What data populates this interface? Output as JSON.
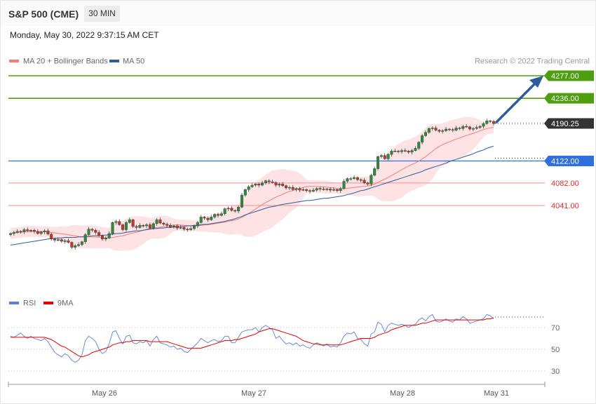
{
  "header": {
    "title": "S&P 500 (CME)",
    "timeframe": "30 MIN",
    "datetime": "Monday, May 30, 2022 9:37:15 AM CET"
  },
  "legend": {
    "ma20": {
      "label": "MA 20 + Bollinger Bands",
      "color": "#f47c7c"
    },
    "ma50": {
      "label": "MA 50",
      "color": "#2e5b9a"
    },
    "credit": "Research © 2022 Trading Central"
  },
  "rsi_legend": {
    "rsi": {
      "label": "RSI",
      "color": "#5b7fd6"
    },
    "ma9": {
      "label": "9MA",
      "color": "#e00000"
    }
  },
  "colors": {
    "resistance": "#4f9e0f",
    "pivot": "#2f6fe0",
    "support": "#f5a0a5",
    "support_text": "#d9302b",
    "last": "#333333",
    "bull": "#2e8b3e",
    "bear": "#c0392b",
    "band": "#fde3e4",
    "arrow": "#2e5b9a"
  },
  "chart_data": [
    {
      "type": "candlestick",
      "x_labels": [
        "May 26",
        "May 27",
        "May 28",
        "May 31"
      ],
      "y_range": [
        3950,
        4285
      ],
      "levels": [
        {
          "value": 4277.0,
          "label": "4277.00",
          "kind": "resistance"
        },
        {
          "value": 4236.0,
          "label": "4236.00",
          "kind": "resistance"
        },
        {
          "value": 4190.25,
          "label": "4190.25",
          "kind": "last"
        },
        {
          "value": 4122.0,
          "label": "4122.00",
          "kind": "pivot"
        },
        {
          "value": 4082.0,
          "label": "4082.00",
          "kind": "support"
        },
        {
          "value": 4041.0,
          "label": "4041.00",
          "kind": "support"
        }
      ],
      "close": [
        3990,
        3992,
        3994,
        3993,
        3997,
        3995,
        3996,
        3994,
        3990,
        3993,
        3995,
        3989,
        3980,
        3978,
        3979,
        3976,
        3977,
        3974,
        3965,
        3968,
        3970,
        3975,
        3988,
        3998,
        3996,
        3992,
        3986,
        3980,
        3982,
        3990,
        4010,
        4012,
        4006,
        3997,
        4010,
        4015,
        4003,
        4001,
        4005,
        4004,
        4006,
        4000,
        4008,
        4015,
        4009,
        4007,
        4005,
        4002,
        4004,
        4000,
        4001,
        3998,
        3997,
        3999,
        4004,
        4010,
        4020,
        4018,
        4015,
        4020,
        4025,
        4023,
        4026,
        4035,
        4036,
        4032,
        4031,
        4038,
        4060,
        4070,
        4075,
        4078,
        4080,
        4078,
        4082,
        4086,
        4084,
        4083,
        4078,
        4080,
        4077,
        4073,
        4074,
        4070,
        4072,
        4069,
        4070,
        4068,
        4067,
        4069,
        4072,
        4071,
        4070,
        4071,
        4069,
        4070,
        4068,
        4072,
        4085,
        4090,
        4090,
        4092,
        4088,
        4087,
        4082,
        4080,
        4096,
        4108,
        4130,
        4132,
        4126,
        4134,
        4140,
        4140,
        4139,
        4141,
        4140,
        4138,
        4141,
        4145,
        4156,
        4168,
        4174,
        4181,
        4182,
        4178,
        4176,
        4177,
        4180,
        4179,
        4178,
        4182,
        4181,
        4185,
        4184,
        4180,
        4181,
        4183,
        4185,
        4190,
        4195,
        4194,
        4190
      ],
      "ma50": [
        3969,
        3970,
        3971,
        3972,
        3973,
        3974,
        3975,
        3976,
        3977,
        3978,
        3979,
        3980,
        3981,
        3981,
        3982,
        3982,
        3983,
        3983,
        3983,
        3983,
        3984,
        3984,
        3985,
        3985,
        3986,
        3986,
        3986,
        3987,
        3987,
        3988,
        3989,
        3990,
        3990,
        3991,
        3992,
        3993,
        3994,
        3995,
        3995,
        3996,
        3997,
        3998,
        3999,
        3999,
        4000,
        4000,
        4001,
        4001,
        4002,
        4002,
        4003,
        4003,
        4004,
        4004,
        4005,
        4005,
        4006,
        4007,
        4007,
        4008,
        4009,
        4010,
        4011,
        4012,
        4014,
        4015,
        4017,
        4019,
        4021,
        4024,
        4026,
        4028,
        4030,
        4032,
        4034,
        4036,
        4038,
        4039,
        4040,
        4042,
        4043,
        4044,
        4045,
        4046,
        4047,
        4048,
        4049,
        4050,
        4050,
        4051,
        4052,
        4053,
        4054,
        4054,
        4055,
        4056,
        4057,
        4058,
        4059,
        4061,
        4062,
        4064,
        4066,
        4068,
        4069,
        4071,
        4073,
        4075,
        4077,
        4079,
        4081,
        4083,
        4085,
        4087,
        4089,
        4091,
        4093,
        4095,
        4097,
        4099,
        4101,
        4103,
        4106,
        4108,
        4110,
        4112,
        4114,
        4116,
        4118,
        4121,
        4123,
        4125,
        4127,
        4129,
        4131,
        4133,
        4135,
        4138,
        4140,
        4142,
        4145,
        4147,
        4149
      ]
    },
    {
      "type": "line",
      "name": "RSI",
      "ylim": [
        20,
        80
      ],
      "yticks": [
        70,
        50,
        30
      ],
      "rsi": [
        62,
        61,
        63,
        65,
        62,
        60,
        62,
        60,
        59,
        58,
        60,
        57,
        52,
        47,
        45,
        43,
        46,
        44,
        40,
        38,
        40,
        45,
        58,
        62,
        60,
        57,
        50,
        46,
        48,
        55,
        66,
        67,
        60,
        55,
        62,
        63,
        56,
        55,
        57,
        56,
        58,
        53,
        59,
        62,
        56,
        55,
        54,
        52,
        53,
        50,
        51,
        48,
        47,
        50,
        53,
        56,
        60,
        58,
        56,
        58,
        59,
        57,
        58,
        62,
        62,
        56,
        56,
        61,
        66,
        67,
        68,
        68,
        70,
        66,
        70,
        72,
        70,
        68,
        60,
        62,
        58,
        55,
        56,
        54,
        56,
        53,
        54,
        52,
        51,
        54,
        56,
        55,
        53,
        55,
        52,
        53,
        52,
        56,
        62,
        65,
        64,
        66,
        60,
        59,
        55,
        53,
        64,
        66,
        75,
        73,
        66,
        72,
        74,
        73,
        72,
        73,
        72,
        70,
        72,
        73,
        77,
        79,
        76,
        80,
        82,
        76,
        75,
        76,
        78,
        76,
        75,
        78,
        77,
        80,
        78,
        74,
        75,
        76,
        77,
        78,
        82,
        81,
        78
      ],
      "ma9": [
        61,
        61,
        61,
        61,
        61,
        61,
        61,
        61,
        61,
        61,
        61,
        60,
        59,
        57,
        55,
        53,
        52,
        50,
        48,
        46,
        44,
        43,
        44,
        45,
        47,
        48,
        49,
        50,
        51,
        52,
        54,
        55,
        56,
        56,
        57,
        57,
        58,
        58,
        58,
        58,
        58,
        57,
        57,
        57,
        57,
        57,
        57,
        56,
        55,
        54,
        53,
        52,
        51,
        51,
        51,
        51,
        51,
        52,
        53,
        54,
        55,
        56,
        57,
        58,
        58,
        58,
        59,
        59,
        60,
        61,
        62,
        63,
        64,
        66,
        67,
        68,
        69,
        69,
        68,
        67,
        66,
        65,
        64,
        63,
        62,
        60,
        58,
        57,
        56,
        55,
        55,
        54,
        54,
        54,
        54,
        54,
        54,
        54,
        55,
        56,
        57,
        58,
        59,
        60,
        60,
        60,
        60,
        61,
        63,
        64,
        65,
        66,
        68,
        69,
        70,
        71,
        72,
        72,
        72,
        72,
        73,
        74,
        74,
        75,
        76,
        77,
        77,
        77,
        77,
        77,
        77,
        77,
        77,
        77,
        77,
        77,
        77,
        77,
        77,
        77,
        78,
        78,
        79
      ]
    }
  ]
}
